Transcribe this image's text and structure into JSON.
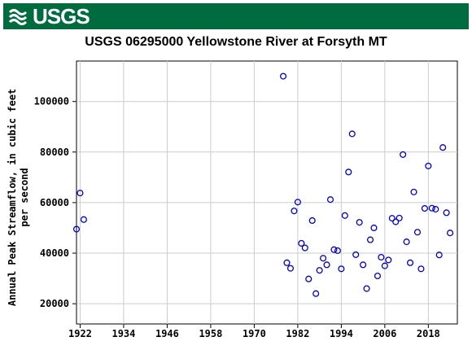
{
  "brand": {
    "logo_text": "USGS",
    "banner_color": "#006b3f"
  },
  "chart_data": {
    "type": "scatter",
    "title": "USGS 06295000 Yellowstone River at Forsyth MT",
    "xlabel": "",
    "ylabel_lines": [
      "Annual Peak Streamflow, in cubic feet",
      "per second"
    ],
    "xlim": [
      1921,
      2026
    ],
    "ylim": [
      12000,
      116000
    ],
    "x_ticks": [
      1922,
      1934,
      1946,
      1958,
      1970,
      1982,
      1994,
      2006,
      2018
    ],
    "y_ticks": [
      20000,
      40000,
      60000,
      80000,
      100000
    ],
    "grid": true,
    "marker": "open-circle",
    "marker_color": "#0000cc",
    "series": [
      {
        "points": [
          [
            1921,
            49500
          ],
          [
            1922,
            63800
          ],
          [
            1923,
            53300
          ],
          [
            1978,
            110000
          ],
          [
            1979,
            36200
          ],
          [
            1980,
            34000
          ],
          [
            1981,
            56700
          ],
          [
            1982,
            60200
          ],
          [
            1983,
            43900
          ],
          [
            1984,
            42100
          ],
          [
            1985,
            29800
          ],
          [
            1986,
            52900
          ],
          [
            1987,
            24000
          ],
          [
            1988,
            33200
          ],
          [
            1989,
            38000
          ],
          [
            1990,
            35400
          ],
          [
            1991,
            61200
          ],
          [
            1992,
            41400
          ],
          [
            1993,
            41000
          ],
          [
            1994,
            33800
          ],
          [
            1995,
            54900
          ],
          [
            1996,
            72100
          ],
          [
            1997,
            87200
          ],
          [
            1998,
            39400
          ],
          [
            1999,
            52200
          ],
          [
            2000,
            35400
          ],
          [
            2001,
            26000
          ],
          [
            2002,
            45300
          ],
          [
            2003,
            50000
          ],
          [
            2004,
            31000
          ],
          [
            2005,
            38400
          ],
          [
            2006,
            35000
          ],
          [
            2007,
            37300
          ],
          [
            2008,
            53800
          ],
          [
            2009,
            52400
          ],
          [
            2010,
            53900
          ],
          [
            2011,
            79000
          ],
          [
            2012,
            44500
          ],
          [
            2013,
            36200
          ],
          [
            2014,
            64200
          ],
          [
            2015,
            48300
          ],
          [
            2016,
            33800
          ],
          [
            2017,
            57700
          ],
          [
            2018,
            74500
          ],
          [
            2019,
            57800
          ],
          [
            2020,
            57400
          ],
          [
            2021,
            39300
          ],
          [
            2022,
            81800
          ],
          [
            2023,
            56000
          ],
          [
            2024,
            48000
          ]
        ]
      }
    ]
  }
}
